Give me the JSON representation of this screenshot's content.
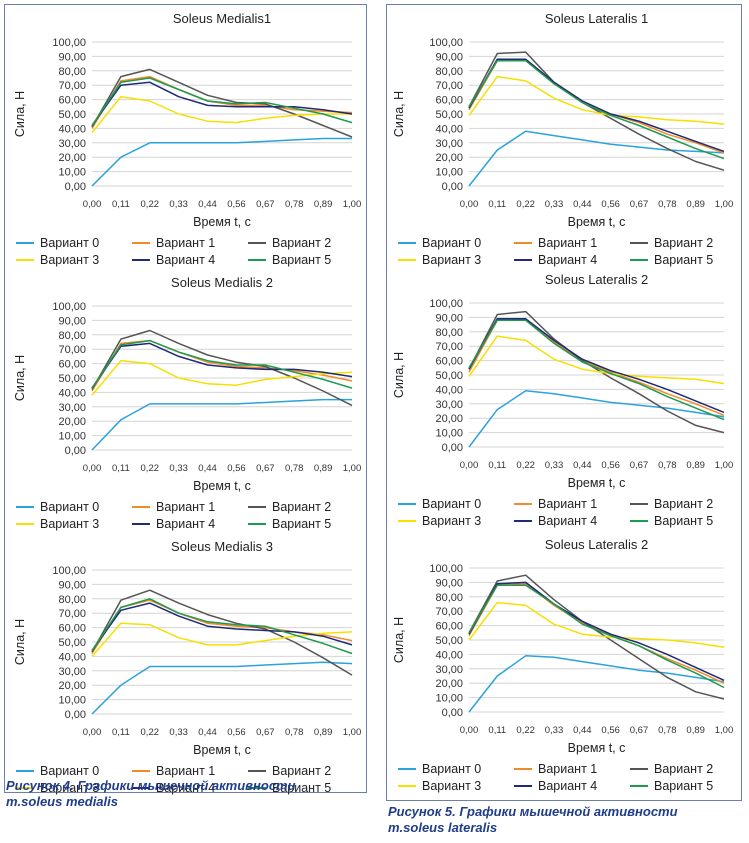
{
  "colors": {
    "v0": "#2aa3dc",
    "v1": "#f08a2a",
    "v2": "#555555",
    "v3": "#f5e000",
    "v4": "#1f2a78",
    "v5": "#1f9a4e",
    "frame": "#6b7fa8",
    "caption": "#1f3d8a"
  },
  "captions": {
    "left_line1": "Рисунок 4. Графики мышечной активности",
    "left_line2": "m.soleus medialis",
    "right_line1": "Рисунок 5. Графики мышечной активности",
    "right_line2": "m.soleus lateralis"
  },
  "chart_data": [
    {
      "type": "line",
      "title": "Soleus Medialis1",
      "xlabel": "Время t, c",
      "ylabel": "Сила, Н",
      "ylim": [
        0,
        100
      ],
      "yticks": [
        "0,00",
        "10,00",
        "20,00",
        "30,00",
        "40,00",
        "50,00",
        "60,00",
        "70,00",
        "80,00",
        "90,00",
        "100,00"
      ],
      "categories": [
        "0,00",
        "0,11",
        "0,22",
        "0,33",
        "0,44",
        "0,56",
        "0,67",
        "0,78",
        "0,89",
        "1,00"
      ],
      "grid": true,
      "legend": "bottom",
      "series": [
        {
          "name": "Вариант 0",
          "values": [
            0,
            20,
            30,
            30,
            30,
            30,
            31,
            32,
            33,
            33
          ]
        },
        {
          "name": "Вариант 1",
          "values": [
            40,
            73,
            76,
            67,
            59,
            56,
            56,
            53,
            52,
            51
          ]
        },
        {
          "name": "Вариант 2",
          "values": [
            41,
            76,
            81,
            72,
            63,
            58,
            57,
            50,
            42,
            34
          ]
        },
        {
          "name": "Вариант 3",
          "values": [
            37,
            62,
            59,
            50,
            45,
            44,
            47,
            49,
            50,
            50
          ]
        },
        {
          "name": "Вариант 4",
          "values": [
            42,
            70,
            72,
            62,
            56,
            55,
            55,
            55,
            53,
            50
          ]
        },
        {
          "name": "Вариант 5",
          "values": [
            42,
            72,
            75,
            67,
            59,
            57,
            58,
            54,
            50,
            44
          ]
        }
      ]
    },
    {
      "type": "line",
      "title": "Soleus Medialis 2",
      "xlabel": "Время t, c",
      "ylabel": "Сила, Н",
      "ylim": [
        0,
        100
      ],
      "yticks": [
        "0,00",
        "10,00",
        "20,00",
        "30,00",
        "40,00",
        "50,00",
        "60,00",
        "70,00",
        "80,00",
        "90,00",
        "100,00"
      ],
      "categories": [
        "0,00",
        "0,11",
        "0,22",
        "0,33",
        "0,44",
        "0,56",
        "0,67",
        "0,78",
        "0,89",
        "1,00"
      ],
      "grid": true,
      "legend": "bottom",
      "series": [
        {
          "name": "Вариант 0",
          "values": [
            0,
            21,
            32,
            32,
            32,
            32,
            33,
            34,
            35,
            35
          ]
        },
        {
          "name": "Вариант 1",
          "values": [
            41,
            74,
            76,
            68,
            61,
            58,
            57,
            55,
            52,
            48
          ]
        },
        {
          "name": "Вариант 2",
          "values": [
            42,
            77,
            83,
            74,
            66,
            61,
            58,
            50,
            41,
            31
          ]
        },
        {
          "name": "Вариант 3",
          "values": [
            38,
            62,
            60,
            50,
            46,
            45,
            49,
            51,
            53,
            54
          ]
        },
        {
          "name": "Вариант 4",
          "values": [
            43,
            72,
            74,
            65,
            59,
            57,
            56,
            56,
            54,
            51
          ]
        },
        {
          "name": "Вариант 5",
          "values": [
            43,
            73,
            76,
            68,
            62,
            59,
            59,
            54,
            49,
            43
          ]
        }
      ]
    },
    {
      "type": "line",
      "title": "Soleus Medialis 3",
      "xlabel": "Время t, c",
      "ylabel": "Сила, Н",
      "ylim": [
        0,
        100
      ],
      "yticks": [
        "0,00",
        "10,00",
        "20,00",
        "30,00",
        "40,00",
        "50,00",
        "60,00",
        "70,00",
        "80,00",
        "90,00",
        "100,00"
      ],
      "categories": [
        "0,00",
        "0,11",
        "0,22",
        "0,33",
        "0,44",
        "0,56",
        "0,67",
        "0,78",
        "0,89",
        "1,00"
      ],
      "grid": true,
      "legend": "bottom",
      "series": [
        {
          "name": "Вариант 0",
          "values": [
            0,
            20,
            33,
            33,
            33,
            33,
            34,
            35,
            36,
            35
          ]
        },
        {
          "name": "Вариант 1",
          "values": [
            42,
            74,
            79,
            70,
            63,
            61,
            60,
            57,
            55,
            51
          ]
        },
        {
          "name": "Вариант 2",
          "values": [
            43,
            79,
            86,
            77,
            69,
            63,
            59,
            50,
            39,
            27
          ]
        },
        {
          "name": "Вариант 3",
          "values": [
            40,
            63,
            62,
            53,
            48,
            48,
            51,
            54,
            56,
            57
          ]
        },
        {
          "name": "Вариант 4",
          "values": [
            44,
            72,
            77,
            68,
            61,
            59,
            58,
            57,
            54,
            48
          ]
        },
        {
          "name": "Вариант 5",
          "values": [
            44,
            74,
            80,
            70,
            64,
            62,
            61,
            55,
            49,
            42
          ]
        }
      ]
    },
    {
      "type": "line",
      "title": "Soleus Lateralis 1",
      "xlabel": "Время t, c",
      "ylabel": "Сила, Н",
      "ylim": [
        0,
        100
      ],
      "yticks": [
        "0,00",
        "10,00",
        "20,00",
        "30,00",
        "40,00",
        "50,00",
        "60,00",
        "70,00",
        "80,00",
        "90,00",
        "100,00"
      ],
      "categories": [
        "0,00",
        "0,11",
        "0,22",
        "0,33",
        "0,44",
        "0,56",
        "0,67",
        "0,78",
        "0,89",
        "1,00"
      ],
      "grid": true,
      "legend": "bottom",
      "series": [
        {
          "name": "Вариант 0",
          "values": [
            0,
            25,
            38,
            35,
            32,
            29,
            27,
            25,
            24,
            23
          ]
        },
        {
          "name": "Вариант 1",
          "values": [
            53,
            87,
            88,
            72,
            59,
            50,
            44,
            36,
            30,
            23
          ]
        },
        {
          "name": "Вариант 2",
          "values": [
            55,
            92,
            93,
            72,
            58,
            47,
            36,
            26,
            17,
            11
          ]
        },
        {
          "name": "Вариант 3",
          "values": [
            49,
            76,
            73,
            61,
            53,
            49,
            48,
            46,
            45,
            43
          ]
        },
        {
          "name": "Вариант 4",
          "values": [
            54,
            88,
            88,
            72,
            59,
            50,
            45,
            38,
            31,
            24
          ]
        },
        {
          "name": "Вариант 5",
          "values": [
            55,
            87,
            87,
            71,
            58,
            49,
            42,
            34,
            26,
            19
          ]
        }
      ]
    },
    {
      "type": "line",
      "title": "Soleus Lateralis 2",
      "xlabel": "Время t, c",
      "ylabel": "Сила, Н",
      "ylim": [
        0,
        100
      ],
      "yticks": [
        "0,00",
        "10,00",
        "20,00",
        "30,00",
        "40,00",
        "50,00",
        "60,00",
        "70,00",
        "80,00",
        "90,00",
        "100,00"
      ],
      "categories": [
        "0,00",
        "0,11",
        "0,22",
        "0,33",
        "0,44",
        "0,56",
        "0,67",
        "0,78",
        "0,89",
        "1,00"
      ],
      "grid": true,
      "legend": "bottom",
      "series": [
        {
          "name": "Вариант 0",
          "values": [
            0,
            26,
            39,
            37,
            34,
            31,
            29,
            27,
            24,
            21
          ]
        },
        {
          "name": "Вариант 1",
          "values": [
            52,
            88,
            89,
            73,
            60,
            52,
            45,
            37,
            30,
            22
          ]
        },
        {
          "name": "Вариант 2",
          "values": [
            54,
            92,
            94,
            75,
            60,
            48,
            37,
            25,
            15,
            10
          ]
        },
        {
          "name": "Вариант 3",
          "values": [
            49,
            77,
            74,
            61,
            54,
            51,
            49,
            48,
            47,
            44
          ]
        },
        {
          "name": "Вариант 4",
          "values": [
            54,
            89,
            89,
            74,
            61,
            53,
            47,
            40,
            32,
            24
          ]
        },
        {
          "name": "Вариант 5",
          "values": [
            55,
            88,
            88,
            72,
            59,
            51,
            44,
            35,
            27,
            19
          ]
        }
      ]
    },
    {
      "type": "line",
      "title": "Soleus Lateralis 2",
      "xlabel": "Время t, c",
      "ylabel": "Сила, Н",
      "ylim": [
        0,
        100
      ],
      "yticks": [
        "0,00",
        "10,00",
        "20,00",
        "30,00",
        "40,00",
        "50,00",
        "60,00",
        "70,00",
        "80,00",
        "90,00",
        "100,00"
      ],
      "categories": [
        "0,00",
        "0,11",
        "0,22",
        "0,33",
        "0,44",
        "0,56",
        "0,67",
        "0,78",
        "0,89",
        "1,00"
      ],
      "grid": true,
      "legend": "bottom",
      "series": [
        {
          "name": "Вариант 0",
          "values": [
            0,
            25,
            39,
            38,
            35,
            32,
            29,
            27,
            24,
            21
          ]
        },
        {
          "name": "Вариант 1",
          "values": [
            53,
            88,
            89,
            74,
            62,
            53,
            46,
            37,
            29,
            20
          ]
        },
        {
          "name": "Вариант 2",
          "values": [
            55,
            91,
            95,
            78,
            63,
            50,
            37,
            24,
            14,
            9
          ]
        },
        {
          "name": "Вариант 3",
          "values": [
            50,
            76,
            74,
            61,
            54,
            52,
            51,
            50,
            48,
            45
          ]
        },
        {
          "name": "Вариант 4",
          "values": [
            54,
            89,
            90,
            75,
            63,
            54,
            48,
            40,
            31,
            22
          ]
        },
        {
          "name": "Вариант 5",
          "values": [
            55,
            88,
            88,
            75,
            61,
            53,
            46,
            36,
            27,
            17
          ]
        }
      ]
    }
  ]
}
